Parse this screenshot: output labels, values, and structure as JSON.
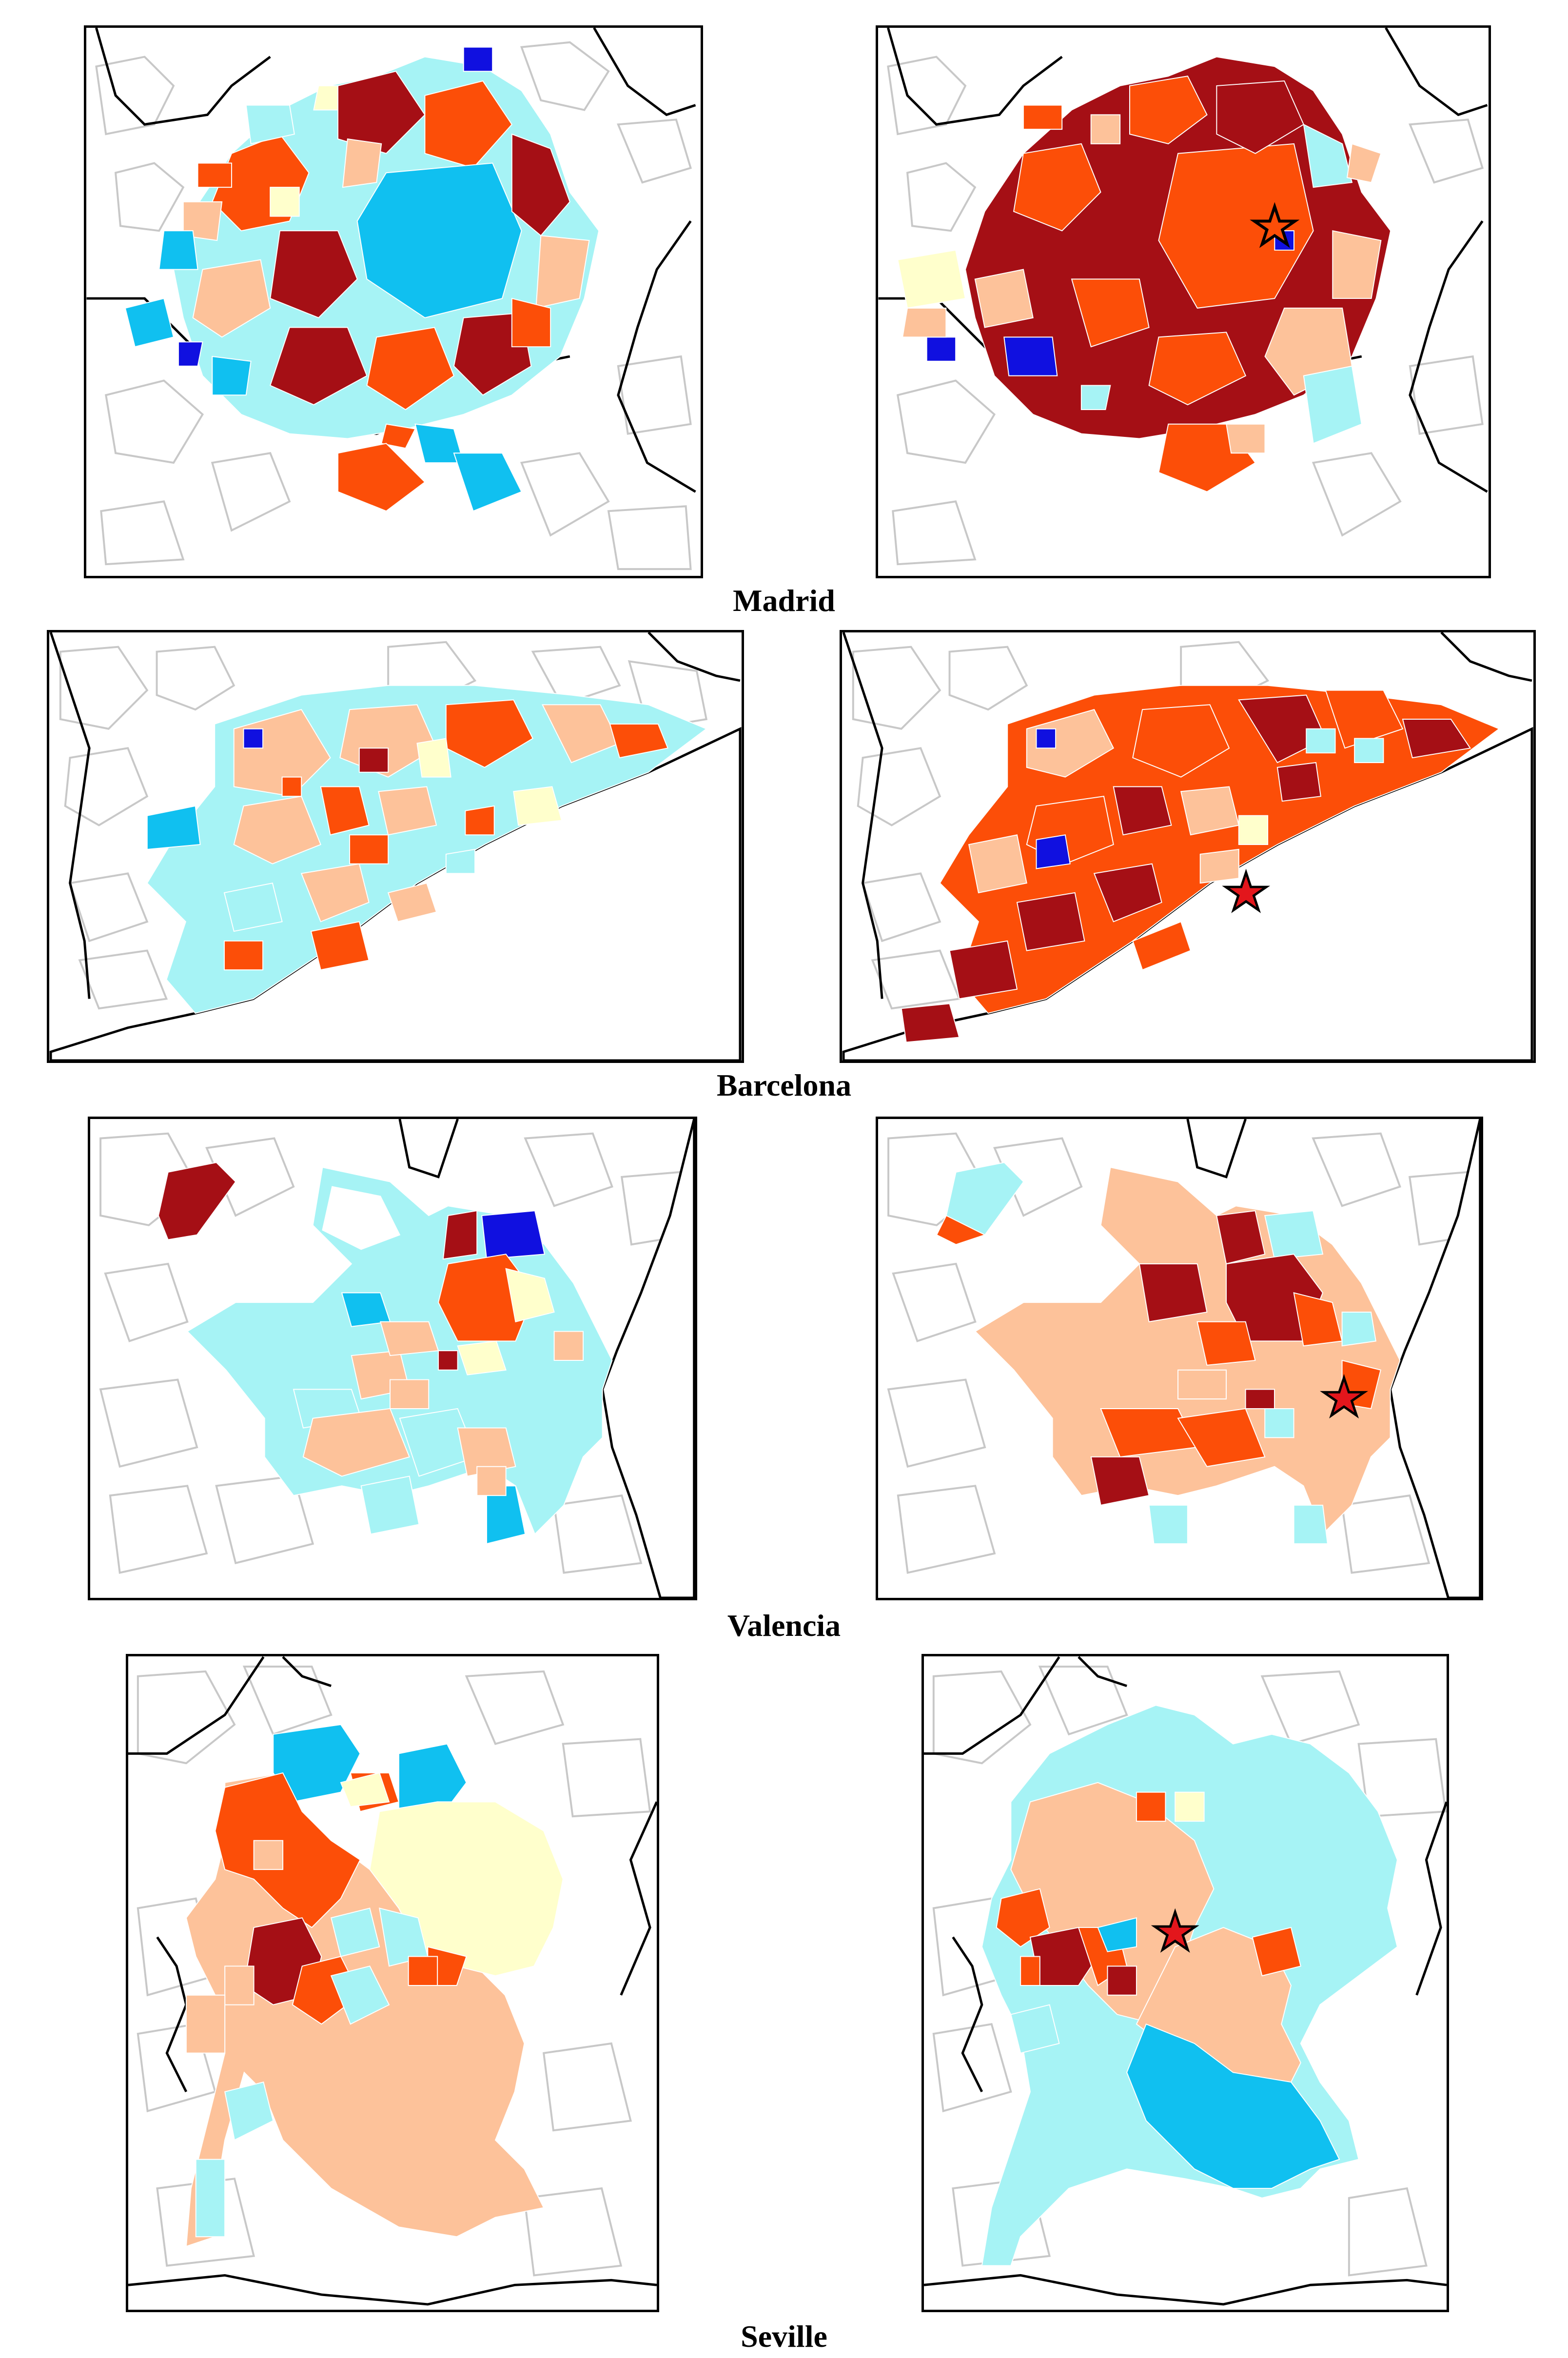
{
  "figure": {
    "cities": [
      {
        "id": "madrid",
        "label": "Madrid"
      },
      {
        "id": "barcelona",
        "label": "Barcelona"
      },
      {
        "id": "valencia",
        "label": "Valencia"
      },
      {
        "id": "seville",
        "label": "Seville"
      }
    ]
  },
  "colors": {
    "dark_red": "#a50f15",
    "orange_red": "#fc4e08",
    "peach": "#fdc29a",
    "pale_yellow": "#ffffcc",
    "pale_cyan": "#a6f3f5",
    "sky_blue": "#10c0f0",
    "blue": "#1010e0",
    "star_fill": "#e3161c",
    "boundary_grey": "#c8c8c8",
    "outline": "#000000"
  },
  "legend_icons": {
    "marker": "star-icon"
  }
}
